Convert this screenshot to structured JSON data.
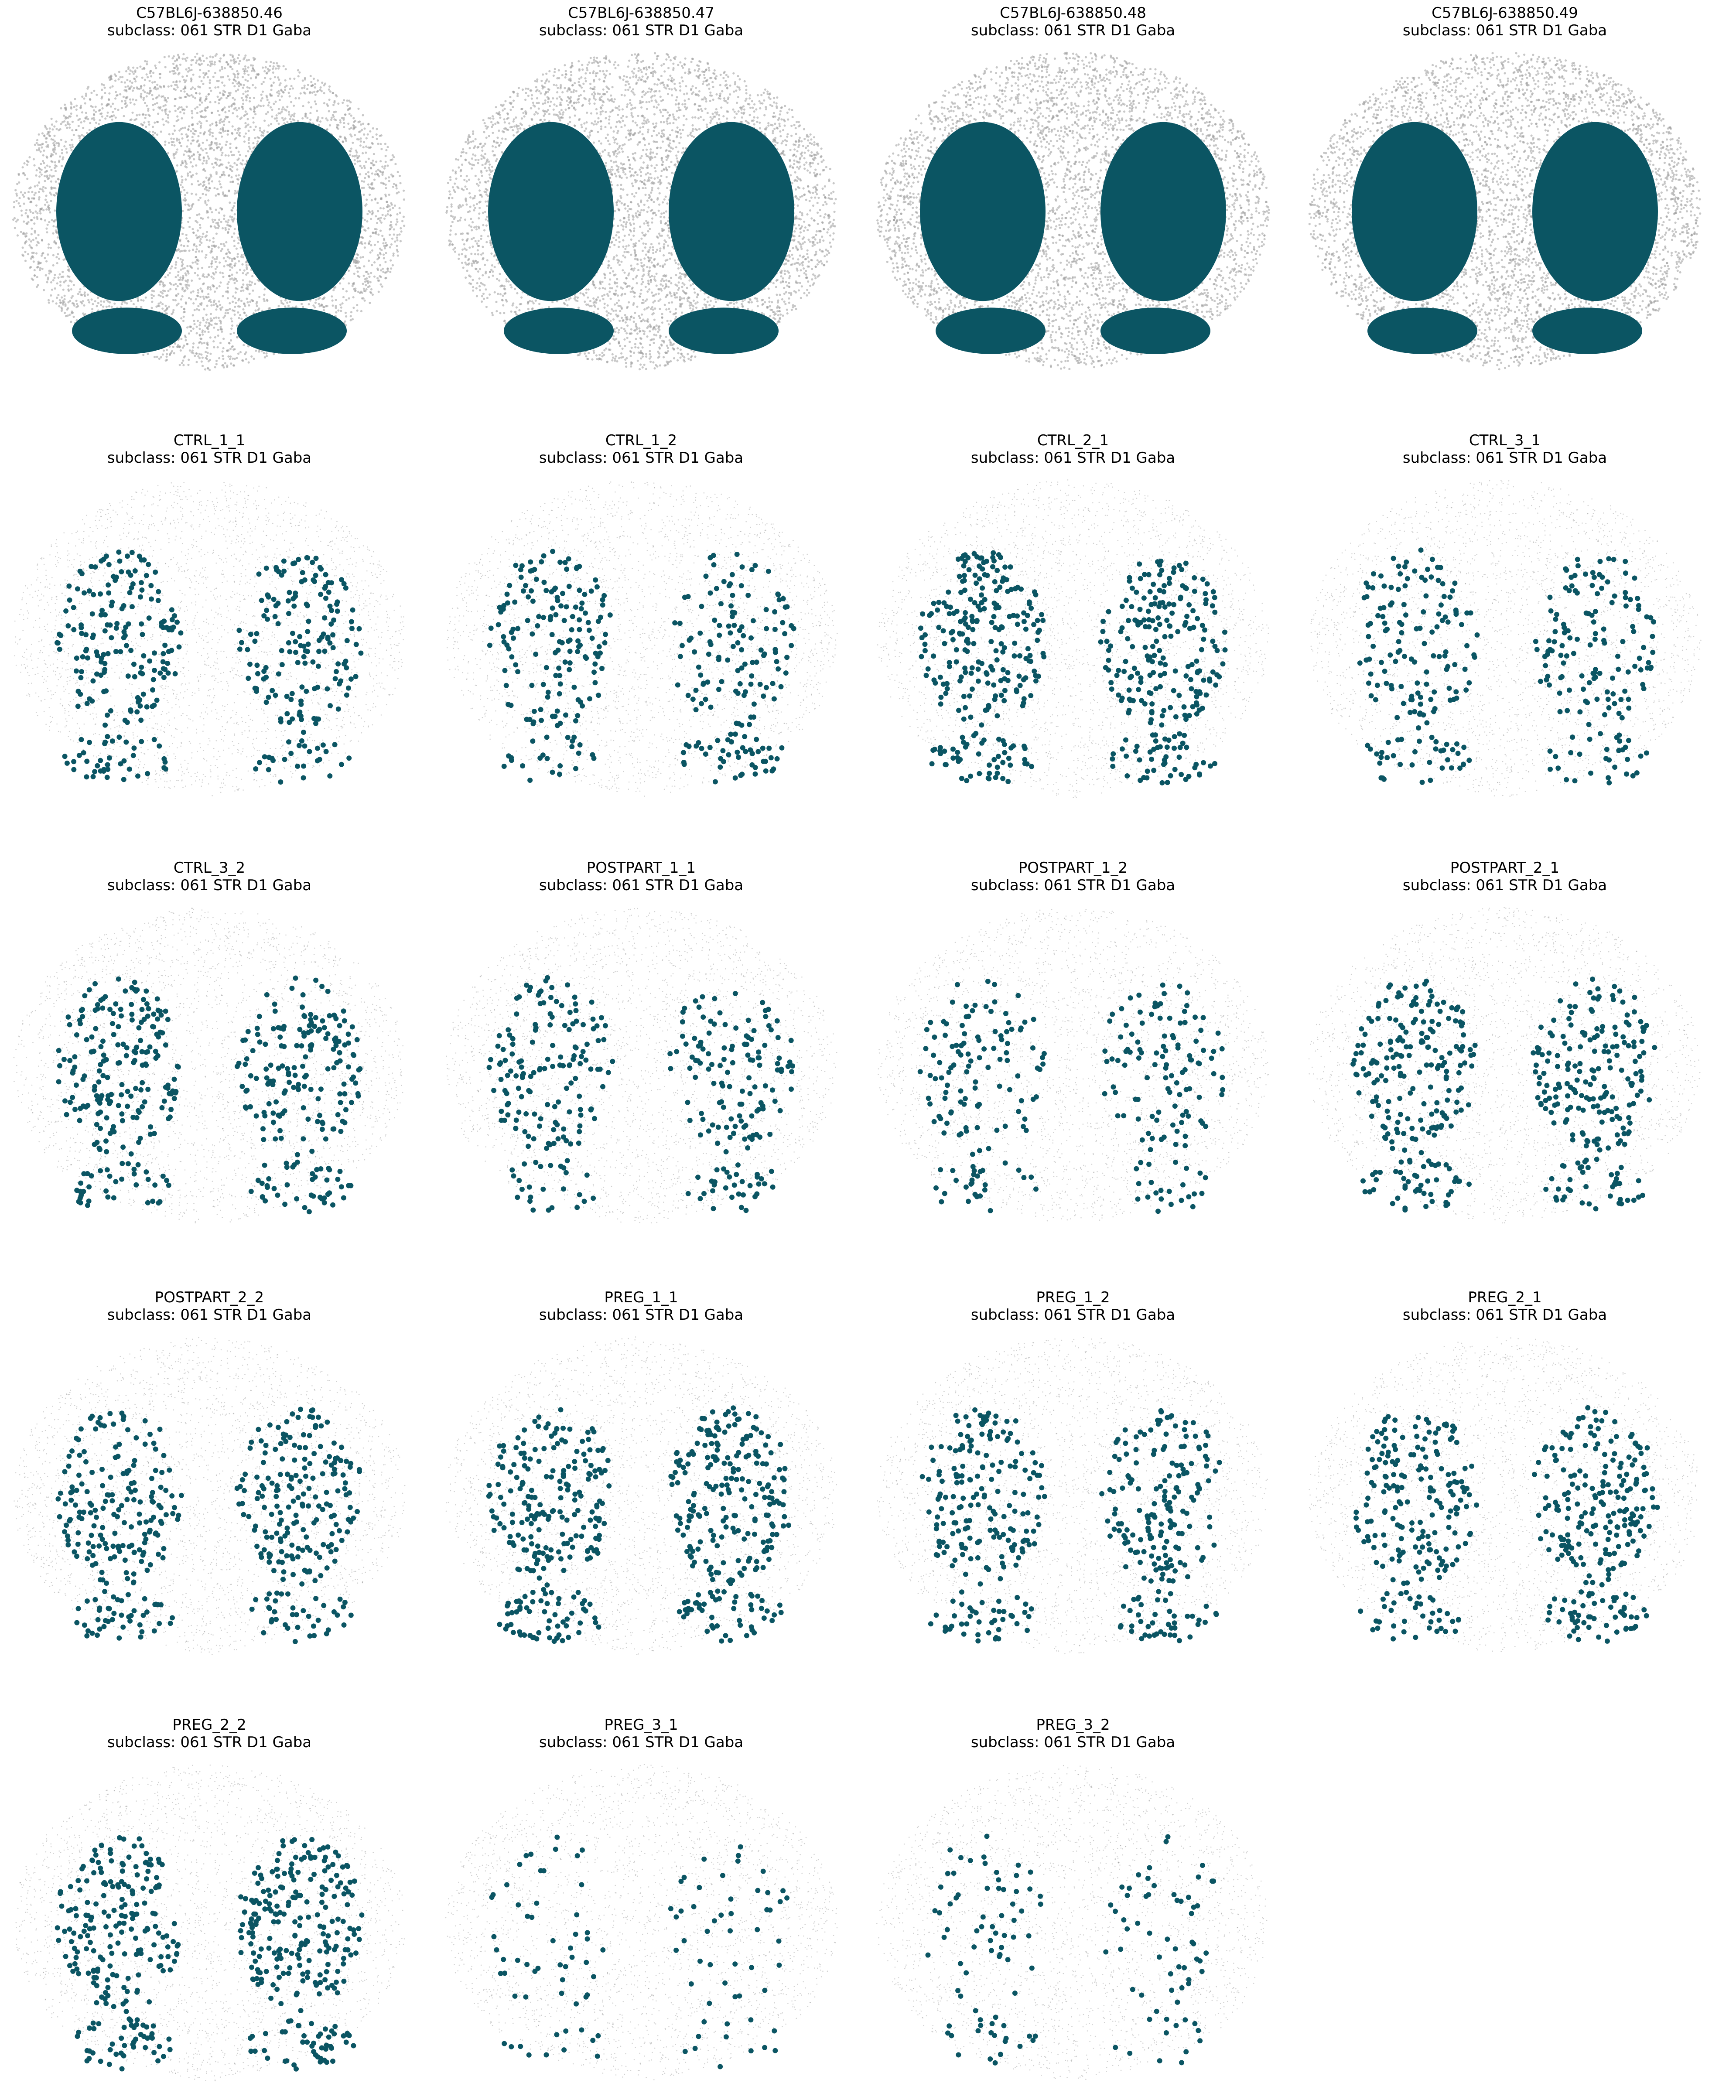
{
  "figure": {
    "background": "#ffffff",
    "highlight_color": "#0b5563",
    "background_points_color": "#9a9a9a",
    "grid": false,
    "axes_visible": false
  },
  "chart_data": [
    {
      "type": "scatter",
      "title": "C57BL6J-638850.46",
      "subtitle": "subclass: 061 STR D1 Gaba",
      "style": "dense",
      "highlight_points": "solid-regions"
    },
    {
      "type": "scatter",
      "title": "C57BL6J-638850.47",
      "subtitle": "subclass: 061 STR D1 Gaba",
      "style": "dense",
      "highlight_points": "solid-regions"
    },
    {
      "type": "scatter",
      "title": "C57BL6J-638850.48",
      "subtitle": "subclass: 061 STR D1 Gaba",
      "style": "dense",
      "highlight_points": "solid-regions"
    },
    {
      "type": "scatter",
      "title": "C57BL6J-638850.49",
      "subtitle": "subclass: 061 STR D1 Gaba",
      "style": "dense",
      "highlight_points": "solid-regions"
    },
    {
      "type": "scatter",
      "title": "CTRL_1_1",
      "subtitle": "subclass: 061 STR D1 Gaba",
      "style": "sparse",
      "highlight_points": 400
    },
    {
      "type": "scatter",
      "title": "CTRL_1_2",
      "subtitle": "subclass: 061 STR D1 Gaba",
      "style": "sparse",
      "highlight_points": 340
    },
    {
      "type": "scatter",
      "title": "CTRL_2_1",
      "subtitle": "subclass: 061 STR D1 Gaba",
      "style": "sparse",
      "highlight_points": 520
    },
    {
      "type": "scatter",
      "title": "CTRL_3_1",
      "subtitle": "subclass: 061 STR D1 Gaba",
      "style": "sparse",
      "highlight_points": 330
    },
    {
      "type": "scatter",
      "title": "CTRL_3_2",
      "subtitle": "subclass: 061 STR D1 Gaba",
      "style": "sparse",
      "highlight_points": 440
    },
    {
      "type": "scatter",
      "title": "POSTPART_1_1",
      "subtitle": "subclass: 061 STR D1 Gaba",
      "style": "sparse",
      "highlight_points": 330
    },
    {
      "type": "scatter",
      "title": "POSTPART_1_2",
      "subtitle": "subclass: 061 STR D1 Gaba",
      "style": "sparse",
      "highlight_points": 270
    },
    {
      "type": "scatter",
      "title": "POSTPART_2_1",
      "subtitle": "subclass: 061 STR D1 Gaba",
      "style": "sparse",
      "highlight_points": 460
    },
    {
      "type": "scatter",
      "title": "POSTPART_2_2",
      "subtitle": "subclass: 061 STR D1 Gaba",
      "style": "sparse",
      "highlight_points": 450
    },
    {
      "type": "scatter",
      "title": "PREG_1_1",
      "subtitle": "subclass: 061 STR D1 Gaba",
      "style": "sparse",
      "highlight_points": 520
    },
    {
      "type": "scatter",
      "title": "PREG_1_2",
      "subtitle": "subclass: 061 STR D1 Gaba",
      "style": "sparse",
      "highlight_points": 430
    },
    {
      "type": "scatter",
      "title": "PREG_2_1",
      "subtitle": "subclass: 061 STR D1 Gaba",
      "style": "sparse",
      "highlight_points": 470
    },
    {
      "type": "scatter",
      "title": "PREG_2_2",
      "subtitle": "subclass: 061 STR D1 Gaba",
      "style": "sparse",
      "highlight_points": 500
    },
    {
      "type": "scatter",
      "title": "PREG_3_1",
      "subtitle": "subclass: 061 STR D1 Gaba",
      "style": "sparse",
      "highlight_points": 110
    },
    {
      "type": "scatter",
      "title": "PREG_3_2",
      "subtitle": "subclass: 061 STR D1 Gaba",
      "style": "sparse",
      "highlight_points": 140
    }
  ]
}
